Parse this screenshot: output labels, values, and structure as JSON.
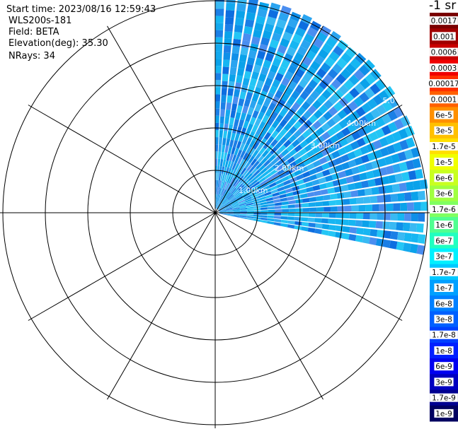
{
  "info": {
    "start_time": "Start time: 2023/08/16 12:59:43",
    "instrument": "WLS200s-181",
    "field": "Field: BETA",
    "elevation": "Elevation(deg): 35.30",
    "nrays": "NRays: 34"
  },
  "colorbar": {
    "title": "-1 sr",
    "labels": [
      "0.0017",
      "0.001",
      "0.0006",
      "0.0003",
      "0.00017",
      "0.0001",
      "6e-5",
      "3e-5",
      "1.7e-5",
      "1e-5",
      "6e-6",
      "3e-6",
      "1.7e-6",
      "1e-6",
      "6e-7",
      "3e-7",
      "1.7e-7",
      "1e-7",
      "6e-8",
      "3e-8",
      "1.7e-8",
      "1e-8",
      "6e-9",
      "3e-9",
      "1.7e-9",
      "1e-9"
    ],
    "colors": [
      "#7a0000",
      "#a00000",
      "#c80000",
      "#f00000",
      "#ff3000",
      "#ff6000",
      "#ff9000",
      "#ffc000",
      "#ffe000",
      "#f0ff00",
      "#c8ff20",
      "#a0ff40",
      "#80ff60",
      "#50ff90",
      "#20ffc0",
      "#00f0ff",
      "#00c8ff",
      "#00a0ff",
      "#0080ff",
      "#0060ff",
      "#0040ff",
      "#0020ff",
      "#0000f0",
      "#0000c0",
      "#000090",
      "#000060"
    ]
  },
  "chart_data": {
    "type": "ppi-polar-scan",
    "field": "BETA",
    "elevation_deg": 35.3,
    "nrays": 34,
    "range_ring_labels": [
      "1.00km",
      "2.00km",
      "3.00km",
      "4.00km",
      "5.0"
    ],
    "range_rings_km": [
      1,
      2,
      3,
      4,
      5
    ],
    "sector_azimuth_deg": [
      0,
      102
    ],
    "max_range_km": 5.1,
    "spoke_azimuths_deg": [
      0,
      30,
      60,
      90,
      120,
      150,
      180,
      210,
      240,
      270,
      300,
      330
    ],
    "typical_value_range": [
      3e-08,
      1e-07
    ]
  }
}
